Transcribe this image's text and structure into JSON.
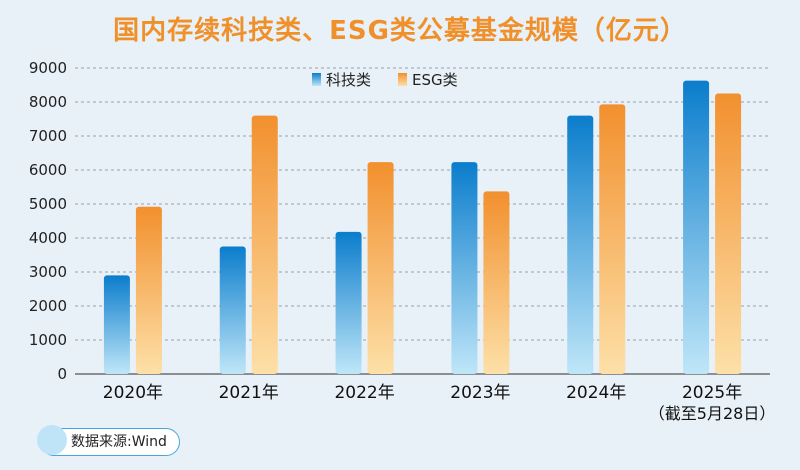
{
  "chart_data": {
    "type": "bar",
    "title": "国内存续科技类、ESG类公募基金规模（亿元）",
    "categories": [
      "2020年",
      "2021年",
      "2022年",
      "2023年",
      "2024年",
      "2025年"
    ],
    "category_notes": [
      "",
      "",
      "",
      "",
      "",
      "（截至5月28日）"
    ],
    "series": [
      {
        "name": "科技类",
        "values": [
          2900,
          3750,
          4180,
          6230,
          7600,
          8630
        ],
        "color": "#1b86d0"
      },
      {
        "name": "ESG类",
        "values": [
          4920,
          7600,
          6230,
          5370,
          7930,
          8250
        ],
        "color": "#f2963c"
      }
    ],
    "ylim": [
      0,
      9000
    ],
    "yticks": [
      0,
      1000,
      2000,
      3000,
      4000,
      5000,
      6000,
      7000,
      8000,
      9000
    ],
    "grid": true,
    "legend_position": "top-center"
  },
  "source": "数据来源:Wind"
}
